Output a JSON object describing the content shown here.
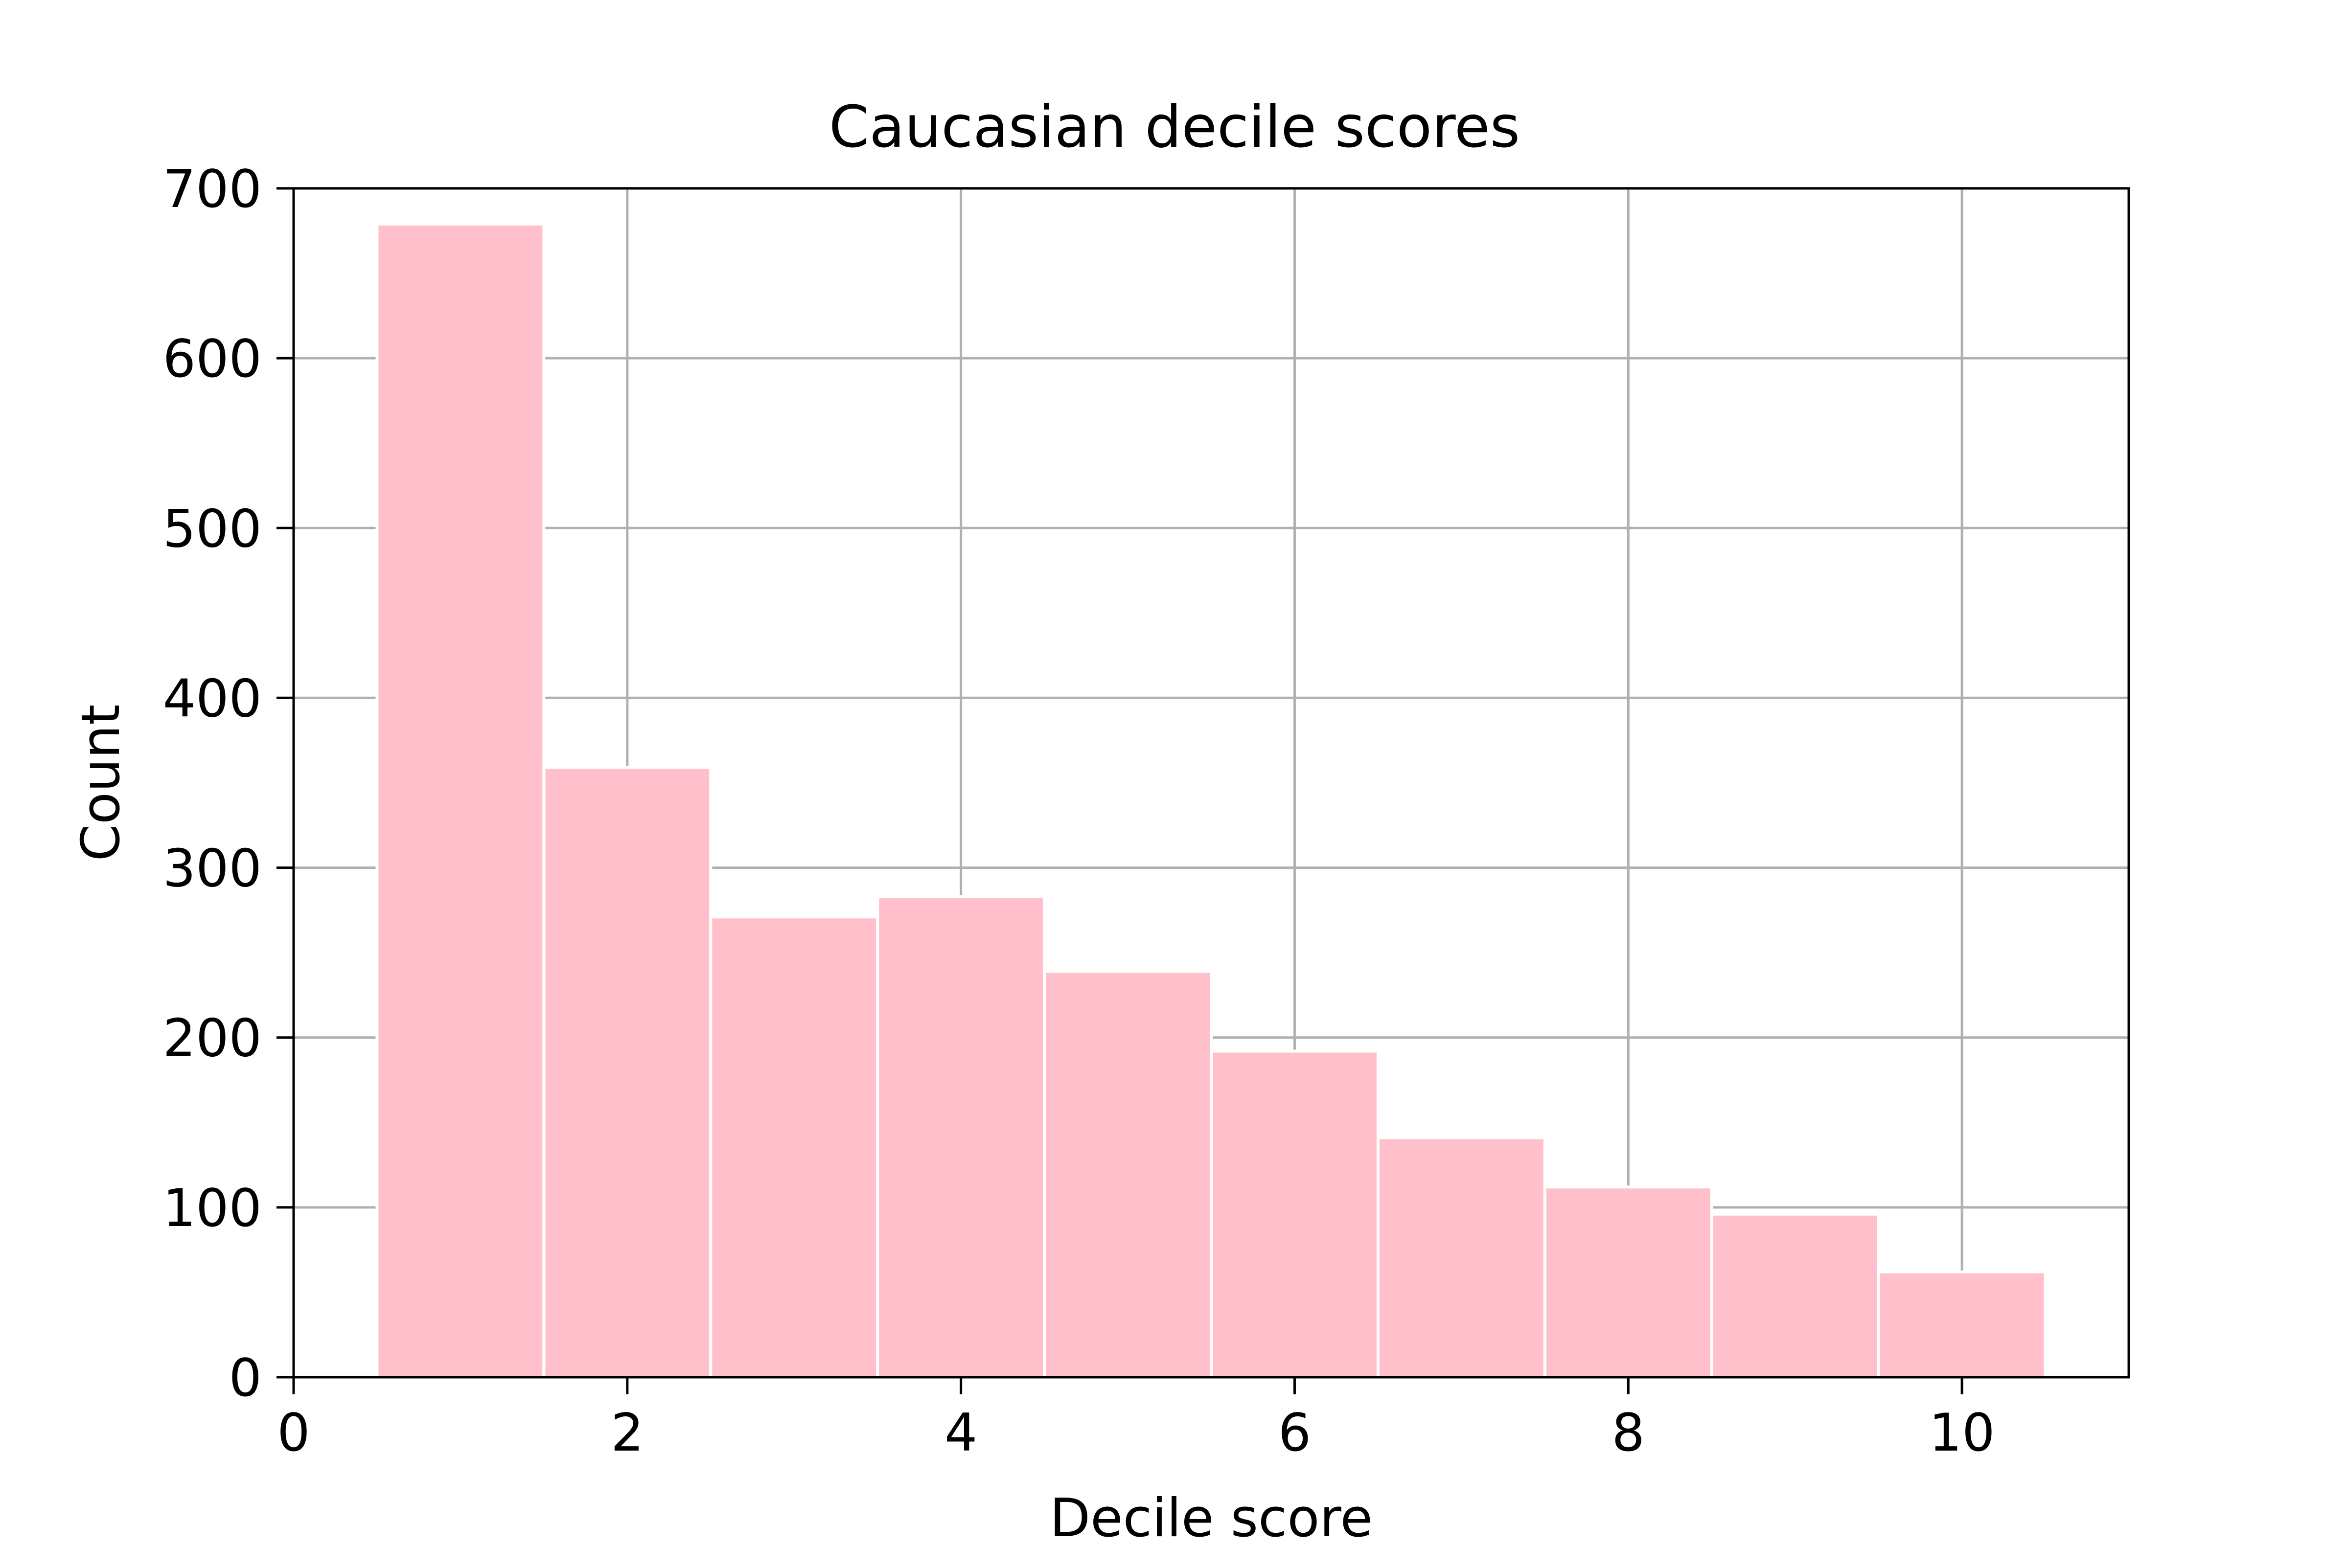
{
  "chart_data": {
    "type": "bar",
    "title": "Caucasian decile scores",
    "xlabel": "Decile score",
    "ylabel": "Count",
    "categories": [
      "1",
      "2",
      "3",
      "4",
      "5",
      "6",
      "7",
      "8",
      "9",
      "10"
    ],
    "x": [
      1,
      2,
      3,
      4,
      5,
      6,
      7,
      8,
      9,
      10
    ],
    "values": [
      679,
      359,
      271,
      283,
      239,
      192,
      141,
      112,
      96,
      62
    ],
    "bin_width": 1,
    "xlim": [
      0,
      11
    ],
    "ylim": [
      0,
      700
    ],
    "xticks": [
      0,
      2,
      4,
      6,
      8,
      10
    ],
    "yticks": [
      0,
      100,
      200,
      300,
      400,
      500,
      600,
      700
    ],
    "grid": true,
    "bar_color": "#ffc0cb",
    "bar_edge_color": "#ffffff",
    "grid_color": "#b0b0b0"
  }
}
